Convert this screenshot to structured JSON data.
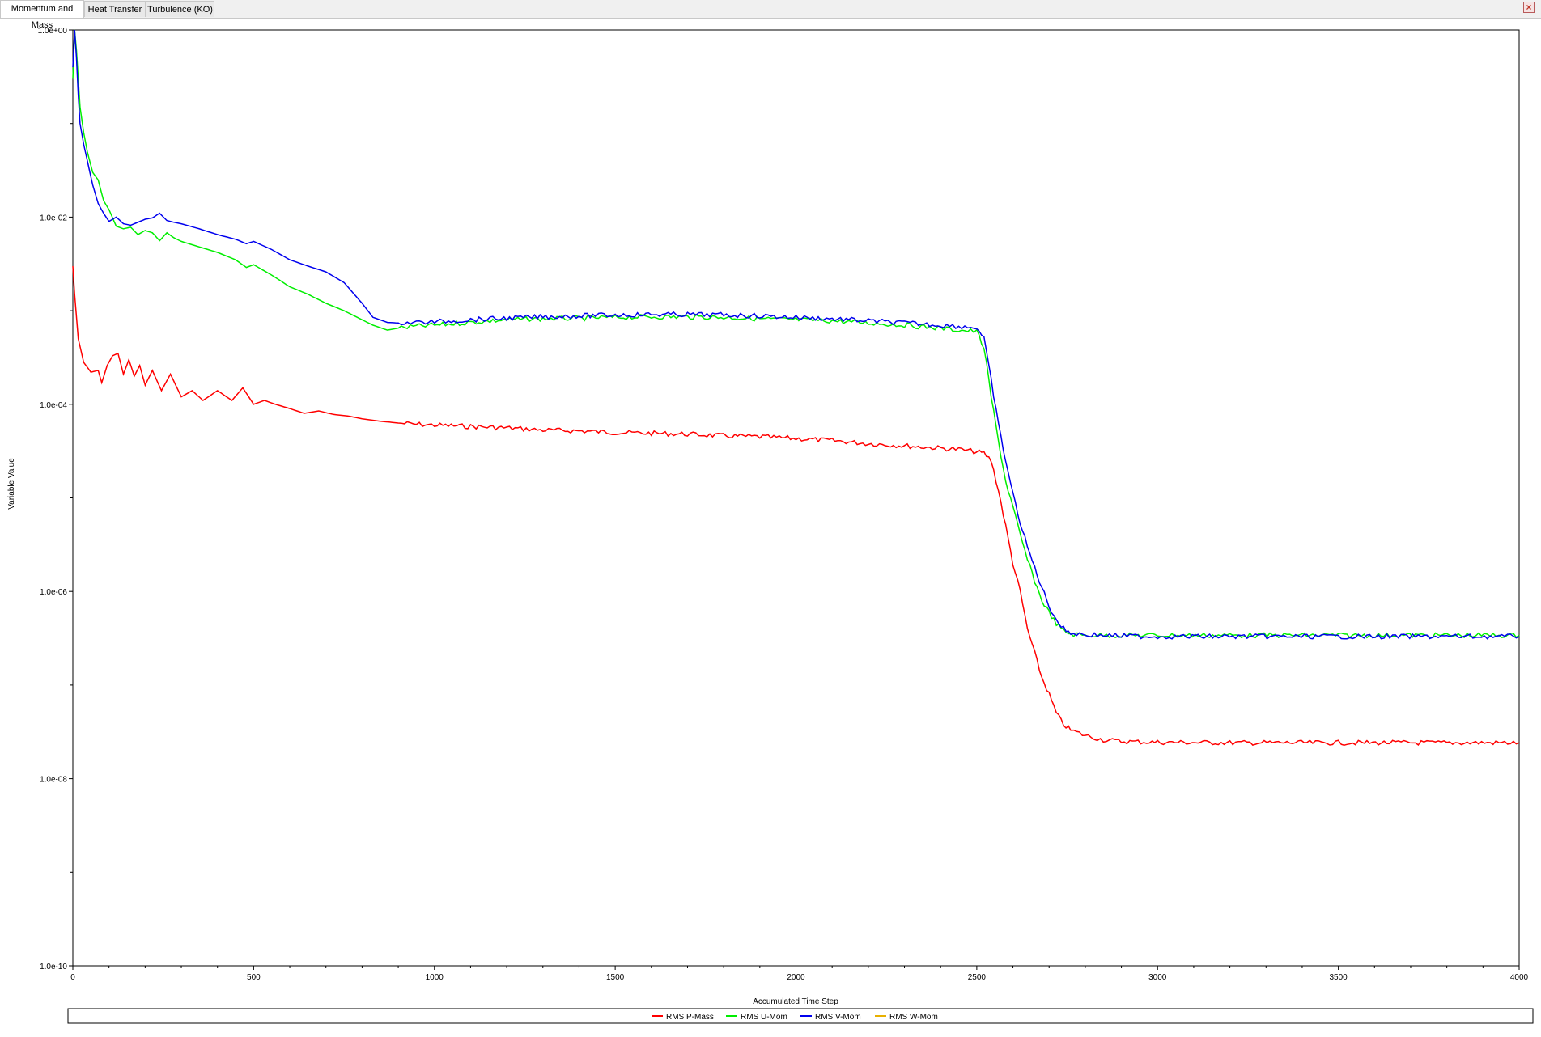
{
  "tabs": [
    {
      "label": "Momentum and Mass",
      "active": true
    },
    {
      "label": "Heat Transfer",
      "active": false
    },
    {
      "label": "Turbulence (KO)",
      "active": false
    }
  ],
  "close_icon": "close-icon",
  "chart_data": {
    "type": "line",
    "xlabel": "Accumulated Time Step",
    "ylabel": "Variable Value",
    "yscale": "log",
    "xlim": [
      0,
      4000
    ],
    "ylim": [
      1e-10,
      1.0
    ],
    "xticks": [
      0,
      500,
      1000,
      1500,
      2000,
      2500,
      3000,
      3500,
      4000
    ],
    "xtick_labels": [
      "0",
      "500",
      "1000",
      "1500",
      "2000",
      "2500",
      "3000",
      "3500",
      "4000"
    ],
    "yticks": [
      1.0,
      0.01,
      0.0001,
      1e-06,
      1e-08,
      1e-10
    ],
    "ytick_labels": [
      "1.0e+00",
      "1.0e-02",
      "1.0e-04",
      "1.0e-06",
      "1.0e-08",
      "1.0e-10"
    ],
    "grid": true,
    "legend_position": "bottom",
    "series": [
      {
        "name": "RMS P-Mass",
        "color": "#ff0000",
        "x": [
          0,
          5,
          15,
          30,
          50,
          70,
          80,
          95,
          110,
          125,
          140,
          155,
          170,
          185,
          200,
          220,
          245,
          270,
          300,
          330,
          360,
          400,
          440,
          470,
          500,
          530,
          560,
          600,
          640,
          680,
          720,
          760,
          800,
          850,
          900,
          950,
          1000,
          1100,
          1200,
          1300,
          1400,
          1500,
          1600,
          1700,
          1800,
          1900,
          2000,
          2100,
          2200,
          2300,
          2400,
          2450,
          2500,
          2520,
          2540,
          2560,
          2580,
          2600,
          2620,
          2640,
          2660,
          2680,
          2700,
          2720,
          2740,
          2760,
          2800,
          2850,
          2900,
          3000,
          3200,
          3500,
          3800,
          4000
        ],
        "y": [
          0.003,
          0.0015,
          0.0005,
          0.00028,
          0.00022,
          0.00023,
          0.00017,
          0.00026,
          0.00033,
          0.00035,
          0.00021,
          0.0003,
          0.0002,
          0.00026,
          0.00016,
          0.00023,
          0.00014,
          0.00021,
          0.00012,
          0.00014,
          0.00011,
          0.00014,
          0.00011,
          0.00015,
          0.0001,
          0.00011,
          0.0001,
          9e-05,
          8e-05,
          8.5e-05,
          7.8e-05,
          7.5e-05,
          7e-05,
          6.6e-05,
          6.3e-05,
          6.1e-05,
          6e-05,
          5.8e-05,
          5.6e-05,
          5.3e-05,
          5.2e-05,
          5e-05,
          4.9e-05,
          4.8e-05,
          4.6e-05,
          4.5e-05,
          4.3e-05,
          4.1e-05,
          3.8e-05,
          3.6e-05,
          3.4e-05,
          3.3e-05,
          3.1e-05,
          3e-05,
          2.5e-05,
          1.2e-05,
          5e-06,
          2e-06,
          1e-06,
          4e-07,
          2.2e-07,
          1.2e-07,
          8e-08,
          5e-08,
          3.8e-08,
          3.3e-08,
          2.9e-08,
          2.6e-08,
          2.5e-08,
          2.45e-08,
          2.42e-08,
          2.42e-08,
          2.42e-08,
          2.42e-08
        ]
      },
      {
        "name": "RMS U-Mom",
        "color": "#00ee00",
        "x": [
          0,
          5,
          10,
          15,
          20,
          30,
          40,
          55,
          70,
          85,
          100,
          120,
          140,
          160,
          180,
          200,
          220,
          240,
          260,
          280,
          300,
          350,
          400,
          450,
          480,
          500,
          550,
          600,
          650,
          700,
          750,
          800,
          830,
          870,
          900,
          950,
          1000,
          1100,
          1200,
          1300,
          1400,
          1500,
          1600,
          1700,
          1800,
          1900,
          2000,
          2100,
          2200,
          2300,
          2400,
          2450,
          2500,
          2520,
          2540,
          2560,
          2580,
          2600,
          2620,
          2640,
          2660,
          2680,
          2700,
          2720,
          2740,
          2760,
          2800,
          2850,
          2900,
          3000,
          3200,
          3500,
          3800,
          4000
        ],
        "y": [
          0.3,
          1.0,
          0.6,
          0.3,
          0.15,
          0.08,
          0.05,
          0.03,
          0.025,
          0.015,
          0.012,
          0.008,
          0.0075,
          0.0078,
          0.0065,
          0.0072,
          0.0068,
          0.0056,
          0.0068,
          0.006,
          0.0055,
          0.0048,
          0.0042,
          0.0035,
          0.0029,
          0.0031,
          0.0024,
          0.0018,
          0.0015,
          0.0012,
          0.001,
          0.0008,
          0.0007,
          0.00062,
          0.00065,
          0.00068,
          0.0007,
          0.00075,
          0.0008,
          0.00082,
          0.00083,
          0.00085,
          0.00086,
          0.00086,
          0.00085,
          0.00082,
          0.0008,
          0.00078,
          0.00074,
          0.0007,
          0.00065,
          0.00062,
          0.0006,
          0.0004,
          0.00012,
          4e-05,
          1.5e-05,
          8e-06,
          4e-06,
          2.2e-06,
          1.3e-06,
          8e-07,
          6e-07,
          4.5e-07,
          3.8e-07,
          3.5e-07,
          3.4e-07,
          3.4e-07,
          3.4e-07,
          3.4e-07,
          3.4e-07,
          3.4e-07,
          3.4e-07,
          3.4e-07
        ]
      },
      {
        "name": "RMS V-Mom",
        "color": "#0000ee",
        "x": [
          0,
          5,
          10,
          15,
          20,
          30,
          40,
          55,
          70,
          85,
          100,
          120,
          140,
          160,
          180,
          200,
          220,
          240,
          260,
          280,
          300,
          350,
          400,
          450,
          480,
          500,
          550,
          600,
          650,
          700,
          750,
          800,
          830,
          870,
          900,
          950,
          1000,
          1100,
          1200,
          1300,
          1400,
          1500,
          1600,
          1700,
          1800,
          1900,
          2000,
          2100,
          2200,
          2300,
          2400,
          2450,
          2500,
          2520,
          2540,
          2560,
          2580,
          2600,
          2620,
          2640,
          2660,
          2680,
          2700,
          2720,
          2740,
          2760,
          2800,
          2850,
          2900,
          3000,
          3200,
          3500,
          3800,
          4000
        ],
        "y": [
          0.4,
          1.0,
          0.5,
          0.2,
          0.1,
          0.06,
          0.04,
          0.022,
          0.014,
          0.011,
          0.009,
          0.01,
          0.0085,
          0.0082,
          0.0088,
          0.0095,
          0.0098,
          0.011,
          0.0092,
          0.0088,
          0.0085,
          0.0075,
          0.0065,
          0.0058,
          0.0052,
          0.0055,
          0.0045,
          0.0035,
          0.003,
          0.0026,
          0.002,
          0.0012,
          0.00085,
          0.00075,
          0.00074,
          0.00075,
          0.00076,
          0.0008,
          0.00083,
          0.00086,
          0.00088,
          0.0009,
          0.00091,
          0.00091,
          0.0009,
          0.00088,
          0.00085,
          0.00082,
          0.00078,
          0.00074,
          0.0007,
          0.00068,
          0.00066,
          0.0005,
          0.00018,
          6e-05,
          2.5e-05,
          1.1e-05,
          5.5e-06,
          3e-06,
          1.8e-06,
          1.1e-06,
          7e-07,
          5e-07,
          4e-07,
          3.6e-07,
          3.45e-07,
          3.4e-07,
          3.35e-07,
          3.3e-07,
          3.3e-07,
          3.3e-07,
          3.3e-07,
          3.3e-07
        ]
      },
      {
        "name": "RMS W-Mom",
        "color": "#e8b000",
        "x": [],
        "y": []
      }
    ]
  }
}
